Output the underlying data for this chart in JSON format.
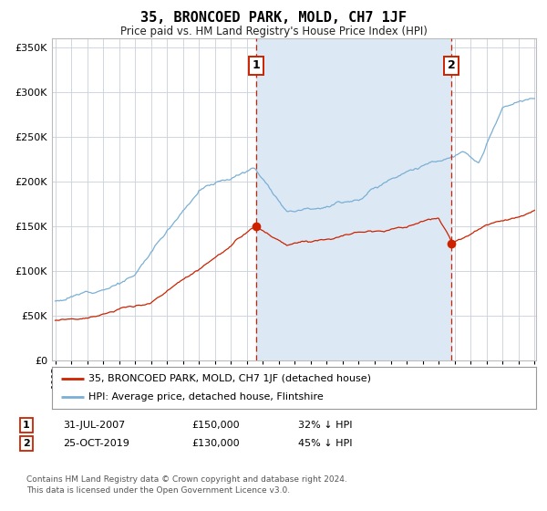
{
  "title": "35, BRONCOED PARK, MOLD, CH7 1JF",
  "subtitle": "Price paid vs. HM Land Registry's House Price Index (HPI)",
  "legend_line1": "35, BRONCOED PARK, MOLD, CH7 1JF (detached house)",
  "legend_line2": "HPI: Average price, detached house, Flintshire",
  "annotation1_price": 150000,
  "annotation2_price": 130000,
  "annotation1_row": "31-JUL-2007",
  "annotation1_val": "£150,000",
  "annotation1_pct": "32% ↓ HPI",
  "annotation2_row": "25-OCT-2019",
  "annotation2_val": "£130,000",
  "annotation2_pct": "45% ↓ HPI",
  "hpi_color": "#7AAFD4",
  "price_color": "#CC2200",
  "shading_color": "#DCE9F5",
  "background_color": "#FFFFFF",
  "grid_color": "#C8D0DC",
  "footnote1": "Contains HM Land Registry data © Crown copyright and database right 2024.",
  "footnote2": "This data is licensed under the Open Government Licence v3.0.",
  "ylim": [
    0,
    360000
  ],
  "yticks": [
    0,
    50000,
    100000,
    150000,
    200000,
    250000,
    300000,
    350000
  ],
  "year_start": 1995,
  "year_end": 2025,
  "annotation1_year": 2007.58,
  "annotation2_year": 2019.81
}
